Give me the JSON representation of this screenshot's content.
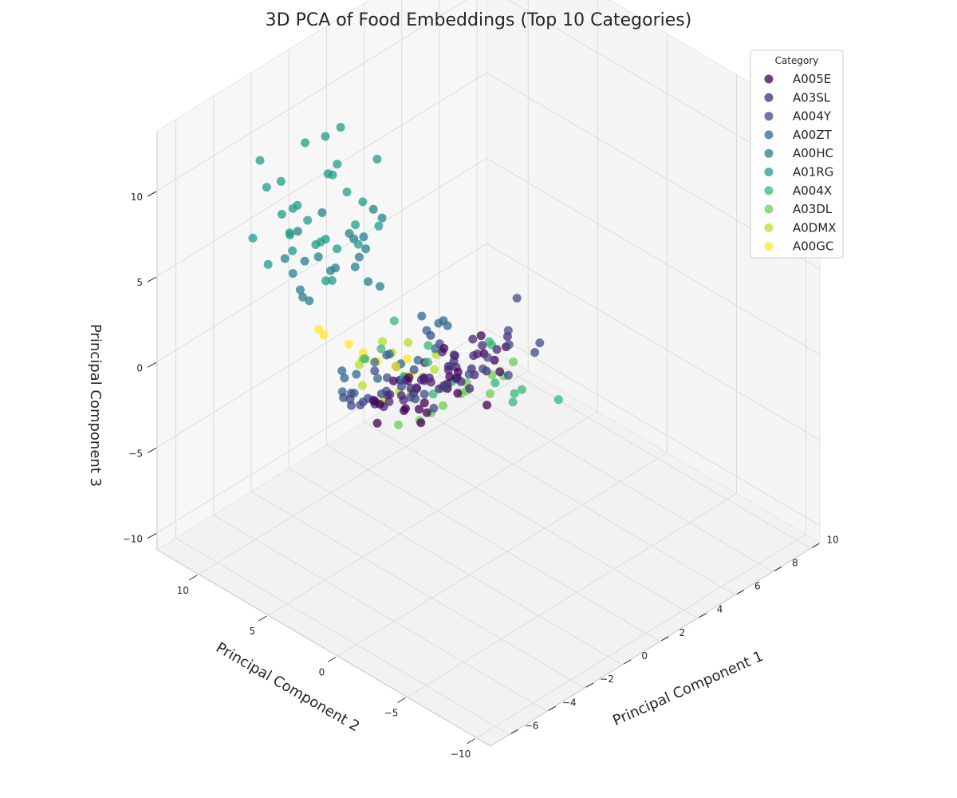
{
  "chart_data": {
    "type": "scatter",
    "projection": "3d",
    "title": "3D PCA of Food Embeddings (Top 10 Categories)",
    "xlabel": "Principal Component 1",
    "ylabel": "Principal Component 2",
    "zlabel": "Principal Component 3",
    "xlim": [
      -7,
      10.5
    ],
    "ylim": [
      -11,
      13
    ],
    "zlim": [
      -11,
      13.5
    ],
    "x_ticks": [
      "−6",
      "−4",
      "−2",
      "0",
      "2",
      "4",
      "6",
      "8",
      "10"
    ],
    "y_ticks": [
      "−10",
      "−5",
      "0",
      "5",
      "10"
    ],
    "z_ticks": [
      "−10",
      "−5",
      "0",
      "5",
      "10"
    ],
    "grid": true,
    "legend": {
      "title": "Category",
      "placement": "top-right"
    },
    "series": [
      {
        "name": "A005E",
        "color": "#440154",
        "points": [
          [
            -4.5,
            -1.5,
            2.5
          ],
          [
            -3.8,
            -0.8,
            3.5
          ],
          [
            -4.2,
            -2.2,
            1.8
          ],
          [
            -3,
            -1,
            1
          ],
          [
            -5.2,
            -0.6,
            2.8
          ],
          [
            -5.8,
            -1,
            3.6
          ],
          [
            -2.6,
            0.1,
            0.4
          ],
          [
            -1.5,
            1.2,
            -0.5
          ],
          [
            -0.8,
            0.5,
            0.2
          ],
          [
            -2,
            2,
            -1
          ],
          [
            0.5,
            1.5,
            -0.2
          ],
          [
            1.2,
            2.5,
            -1.5
          ],
          [
            -1.2,
            -0.2,
            1.5
          ],
          [
            -3.3,
            1,
            2.1
          ],
          [
            0.4,
            -0.5,
            1.9
          ],
          [
            1.8,
            -0.2,
            1.2
          ],
          [
            2.5,
            1.2,
            -1.4
          ],
          [
            1.3,
            0.5,
            -2.2
          ],
          [
            -0.2,
            3,
            -0.8
          ],
          [
            2.1,
            2,
            0.6
          ],
          [
            3.4,
            2.8,
            -2.1
          ],
          [
            -4.6,
            0.4,
            0.8
          ],
          [
            -2.1,
            -2,
            2
          ],
          [
            0.2,
            2.1,
            1.1
          ]
        ]
      },
      {
        "name": "A03SL",
        "color": "#482878",
        "points": [
          [
            0,
            1,
            0
          ],
          [
            -0.5,
            1.5,
            -0.5
          ],
          [
            0.5,
            1.8,
            0.3
          ],
          [
            -0.2,
            2.5,
            -0.8
          ],
          [
            1,
            1.2,
            -0.2
          ],
          [
            -1,
            0.5,
            0.5
          ],
          [
            0.3,
            2,
            -1
          ],
          [
            -0.8,
            1.8,
            0.2
          ],
          [
            0.8,
            2.6,
            -0.6
          ],
          [
            1.4,
            1.6,
            0.1
          ],
          [
            -1.5,
            1.2,
            0.8
          ],
          [
            -0.3,
            0.2,
            0.4
          ],
          [
            0.6,
            0.8,
            -0.9
          ],
          [
            -1.2,
            2.2,
            -0.3
          ],
          [
            1.1,
            3,
            -1.2
          ],
          [
            -0.6,
            3.2,
            -1.5
          ],
          [
            1.8,
            2.2,
            0.5
          ],
          [
            -1.8,
            2,
            0.6
          ],
          [
            0.2,
            3.5,
            -0.4
          ],
          [
            2.2,
            1,
            0.2
          ],
          [
            -2.2,
            0.8,
            1
          ],
          [
            0.9,
            0,
            0.3
          ],
          [
            -0.1,
            -0.5,
            1
          ],
          [
            1.6,
            3.2,
            -0.8
          ],
          [
            -2.5,
            2.5,
            0
          ],
          [
            2.6,
            2.6,
            -0.6
          ],
          [
            -1.4,
            3,
            -1
          ],
          [
            0.4,
            4,
            -1.8
          ],
          [
            -3,
            0.5,
            2.2
          ],
          [
            -4,
            -1.2,
            3.2
          ],
          [
            -3.5,
            0,
            1.6
          ],
          [
            -2.8,
            -0.5,
            2.6
          ],
          [
            -5,
            -1,
            3
          ],
          [
            -4.8,
            0.3,
            2.1
          ],
          [
            3,
            3.5,
            -1.8
          ],
          [
            2.4,
            4.2,
            -2.5
          ],
          [
            -0.9,
            4.5,
            -2
          ],
          [
            1.5,
            4,
            -0.9
          ],
          [
            3.5,
            2,
            -0.4
          ],
          [
            -1.9,
            3.6,
            -1.6
          ]
        ]
      },
      {
        "name": "A004Y",
        "color": "#3e4989",
        "points": [
          [
            -3.5,
            -0.5,
            2
          ],
          [
            -4,
            0.5,
            3
          ],
          [
            -3,
            -1.5,
            1.5
          ],
          [
            -5,
            0,
            2.5
          ],
          [
            -2.5,
            1.5,
            1
          ],
          [
            -1.8,
            0.8,
            0.4
          ],
          [
            -4.5,
            1.2,
            1.8
          ],
          [
            -3.2,
            2,
            0.8
          ],
          [
            -5.5,
            -0.5,
            3.2
          ],
          [
            -2,
            -1,
            1.8
          ],
          [
            -4.2,
            -1.8,
            3
          ],
          [
            -3.8,
            2.5,
            0.5
          ],
          [
            -2.8,
            0.2,
            2.8
          ],
          [
            0,
            5,
            -2
          ],
          [
            1,
            6,
            -3
          ],
          [
            2,
            5.5,
            -1
          ],
          [
            -1,
            6.5,
            -3.5
          ],
          [
            3,
            6.2,
            -2.5
          ],
          [
            1.5,
            7,
            -4
          ],
          [
            -2,
            5.8,
            -1.8
          ],
          [
            0.5,
            7.5,
            -3
          ],
          [
            2.5,
            4.5,
            -2
          ],
          [
            -0.5,
            -2,
            3
          ],
          [
            1,
            -1.5,
            2.5
          ],
          [
            -1.5,
            -3,
            3.5
          ],
          [
            0,
            -2.8,
            2
          ],
          [
            2,
            -2,
            1.6
          ],
          [
            4,
            2,
            1.5
          ],
          [
            3,
            -1,
            1
          ],
          [
            -3,
            5,
            -1
          ],
          [
            -2.2,
            3,
            -0.2
          ],
          [
            -4.8,
            2,
            1.2
          ],
          [
            -5.6,
            1,
            2.6
          ],
          [
            -1.2,
            -1.6,
            2.3
          ],
          [
            2.8,
            1,
            0.9
          ]
        ]
      },
      {
        "name": "A00ZT",
        "color": "#31688e",
        "points": [
          [
            2,
            8,
            -4
          ],
          [
            3,
            9,
            -5
          ],
          [
            2.5,
            10,
            -6
          ],
          [
            1,
            9.5,
            -4.5
          ],
          [
            4,
            8.5,
            -3.5
          ],
          [
            3.5,
            10.5,
            -5.5
          ],
          [
            1.5,
            8,
            -3
          ],
          [
            0,
            9,
            -3.8
          ],
          [
            5,
            9,
            -4
          ],
          [
            2,
            11,
            -7
          ],
          [
            4,
            7,
            -2.5
          ],
          [
            3,
            7.5,
            -1.5
          ],
          [
            0.5,
            7.5,
            -2.5
          ],
          [
            6,
            10,
            -5
          ],
          [
            1,
            10.5,
            -6
          ],
          [
            -0.5,
            8.5,
            -2.8
          ],
          [
            3.2,
            6.8,
            -3.2
          ],
          [
            4.5,
            9.8,
            -6.2
          ]
        ]
      },
      {
        "name": "A00HC",
        "color": "#26828e",
        "points": [
          [
            0,
            10,
            2
          ],
          [
            1,
            11,
            1
          ],
          [
            -1,
            10.5,
            3
          ],
          [
            0.5,
            9,
            4
          ],
          [
            2,
            10,
            0
          ],
          [
            -0.5,
            11.5,
            0.5
          ],
          [
            1.5,
            9.5,
            2.5
          ],
          [
            -1.5,
            9.5,
            1.5
          ],
          [
            0,
            12,
            -0.5
          ],
          [
            1,
            10,
            3.5
          ],
          [
            -1,
            11,
            4.5
          ],
          [
            2.5,
            11,
            1.8
          ],
          [
            0.2,
            8.5,
            2.8
          ],
          [
            -2,
            10,
            3.2
          ],
          [
            3,
            12,
            -0.2
          ],
          [
            1.2,
            12.5,
            0.8
          ],
          [
            -0.3,
            10.2,
            5.5
          ],
          [
            2,
            9,
            4.2
          ],
          [
            3,
            10.5,
            -1.2
          ],
          [
            -0.8,
            12.2,
            2.2
          ],
          [
            0.8,
            8,
            6
          ]
        ]
      },
      {
        "name": "A01RG",
        "color": "#1f9e89",
        "points": [
          [
            -2,
            8,
            6
          ],
          [
            -1,
            9,
            5
          ],
          [
            -3,
            7,
            7
          ],
          [
            -2.5,
            9,
            8
          ],
          [
            -1.5,
            7.5,
            5.5
          ],
          [
            -3.5,
            8,
            6.5
          ],
          [
            0,
            8,
            4.5
          ],
          [
            -2,
            10,
            7
          ],
          [
            -1,
            8.5,
            9
          ],
          [
            -4,
            7.5,
            8
          ],
          [
            -2.5,
            6.5,
            4.8
          ],
          [
            0.5,
            9.5,
            6.5
          ],
          [
            -3,
            9.5,
            9.5
          ],
          [
            -1.8,
            10.5,
            5.2
          ],
          [
            -4.2,
            8.8,
            5.8
          ],
          [
            -0.5,
            7,
            7.8
          ],
          [
            1,
            8,
            8.8
          ],
          [
            -3.8,
            6.5,
            9.2
          ],
          [
            -2.2,
            7.2,
            10.5
          ],
          [
            -1.2,
            10.2,
            10.2
          ],
          [
            0.2,
            6.8,
            6
          ],
          [
            -4.5,
            9.5,
            7.2
          ],
          [
            -2.8,
            10.8,
            8.4
          ],
          [
            -0.2,
            9,
            11
          ],
          [
            -3.2,
            6,
            5.5
          ],
          [
            -1.6,
            8.2,
            11.8
          ],
          [
            -4.8,
            7,
            10
          ],
          [
            0.8,
            10.6,
            7.4
          ],
          [
            -2,
            5.5,
            8.2
          ],
          [
            -3.6,
            10.2,
            10.8
          ]
        ]
      },
      {
        "name": "A004X",
        "color": "#35b779",
        "points": [
          [
            2,
            4,
            -3
          ],
          [
            1,
            3,
            -2
          ],
          [
            3,
            5,
            -4
          ],
          [
            4,
            4,
            -2
          ],
          [
            2.5,
            6,
            -5
          ],
          [
            0,
            3,
            0
          ],
          [
            -2,
            2,
            1
          ],
          [
            4,
            -1,
            -3
          ],
          [
            3.5,
            1.5,
            -3.5
          ],
          [
            5,
            3,
            -5
          ],
          [
            1.5,
            5,
            -1
          ],
          [
            -1,
            5,
            0.5
          ],
          [
            2.8,
            2.2,
            -0.5
          ],
          [
            -3,
            3.5,
            2
          ],
          [
            0.8,
            6.5,
            0.2
          ],
          [
            5.2,
            5.2,
            -5.8
          ],
          [
            1.2,
            -1.5,
            -1
          ],
          [
            3.8,
            6.5,
            -4.5
          ]
        ]
      },
      {
        "name": "A03DL",
        "color": "#6ece58",
        "points": [
          [
            4,
            6,
            -6
          ],
          [
            5,
            7,
            -7
          ],
          [
            4.5,
            8,
            -8
          ],
          [
            6,
            6.5,
            -6.5
          ],
          [
            3.5,
            7.5,
            -7.5
          ],
          [
            6.5,
            9,
            -8.5
          ],
          [
            5.5,
            5,
            -5.5
          ],
          [
            3,
            6,
            -5
          ],
          [
            7,
            8,
            -9
          ],
          [
            4,
            9,
            -9
          ],
          [
            7.5,
            7,
            -7
          ],
          [
            2.5,
            8.5,
            -8
          ]
        ]
      },
      {
        "name": "A0DMX",
        "color": "#b5de2b",
        "points": [
          [
            4,
            11,
            -6
          ],
          [
            5,
            12,
            -8
          ],
          [
            5.5,
            12.5,
            -10
          ],
          [
            6,
            11.5,
            -9
          ],
          [
            3,
            12,
            -6.5
          ],
          [
            4.5,
            10.5,
            -5.5
          ],
          [
            6.5,
            13,
            -11
          ],
          [
            3.5,
            11,
            -5
          ],
          [
            7,
            12,
            -9.5
          ],
          [
            5,
            13,
            -10.5
          ],
          [
            3.8,
            12.6,
            -7
          ],
          [
            6.2,
            10.8,
            -7.5
          ],
          [
            4.2,
            13.4,
            -9.2
          ],
          [
            2.8,
            11.5,
            -5.8
          ]
        ]
      },
      {
        "name": "A00GC",
        "color": "#fde725",
        "points": [
          [
            0,
            10.5,
            -2
          ],
          [
            1,
            9,
            -3
          ],
          [
            2,
            8,
            -4
          ],
          [
            3.5,
            9,
            -6
          ],
          [
            -0.5,
            8,
            -1
          ],
          [
            1.5,
            6.5,
            -2.5
          ],
          [
            2.5,
            10,
            -5
          ],
          [
            -1,
            9.5,
            -0.5
          ]
        ]
      }
    ]
  }
}
